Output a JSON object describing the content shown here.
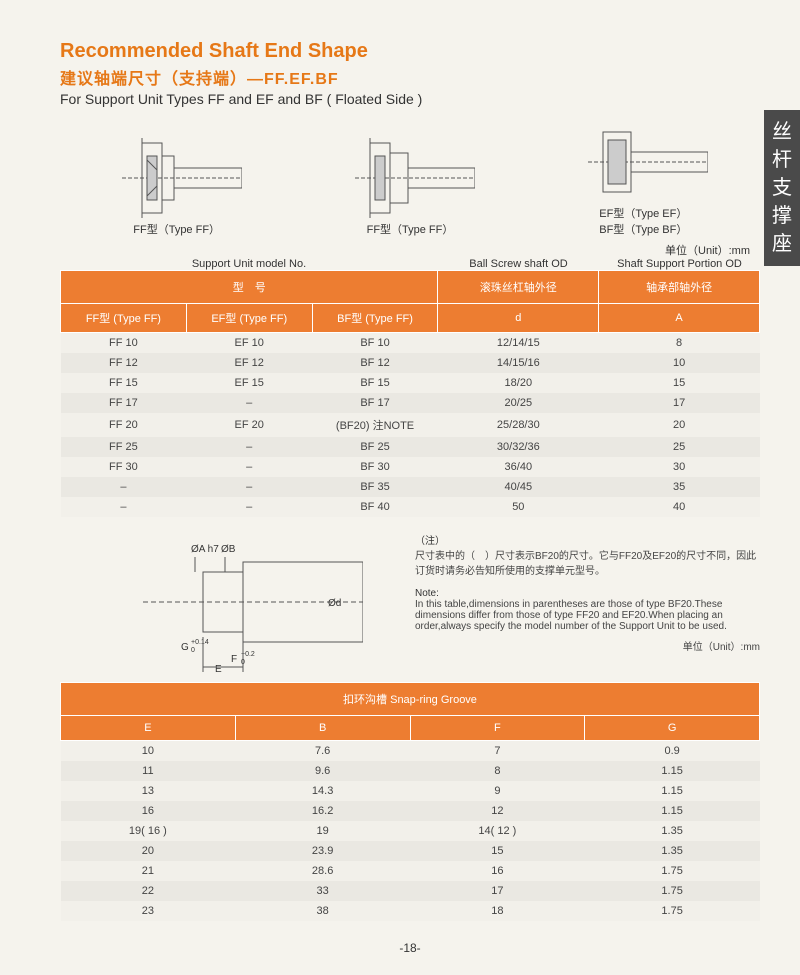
{
  "header": {
    "title_en": "Recommended Shaft End Shape",
    "title_cn": "建议轴端尺寸（支持端）—FF.EF.BF",
    "subtitle": "For Support Unit Types FF and EF and BF ( Floated Side )"
  },
  "diagrams": {
    "d1_label": "FF型（Type FF）",
    "d2_label": "FF型（Type FF）",
    "d3_label_top": "EF型（Type EF）",
    "d3_label_bot": "BF型（Type BF）",
    "unit": "单位（Unit）:mm"
  },
  "table1": {
    "over_labels": {
      "support": "Support Unit model No.",
      "ball": "Ball Screw shaft OD",
      "shaft": "Shaft Support Portion OD"
    },
    "group_headers": {
      "model": "型　号",
      "ball_cn": "滚珠丝杠轴外径",
      "shaft_cn": "轴承部轴外径"
    },
    "cols": {
      "ff": "FF型 (Type FF)",
      "ef": "EF型 (Type FF)",
      "bf": "BF型 (Type FF)",
      "d": "d",
      "a": "A"
    },
    "rows": [
      {
        "ff": "FF 10",
        "ef": "EF 10",
        "bf": "BF 10",
        "d": "12/14/15",
        "a": "8"
      },
      {
        "ff": "FF 12",
        "ef": "EF 12",
        "bf": "BF 12",
        "d": "14/15/16",
        "a": "10"
      },
      {
        "ff": "FF 15",
        "ef": "EF 15",
        "bf": "BF 15",
        "d": "18/20",
        "a": "15"
      },
      {
        "ff": "FF 17",
        "ef": "–",
        "bf": "BF 17",
        "d": "20/25",
        "a": "17"
      },
      {
        "ff": "FF 20",
        "ef": "EF 20",
        "bf": "(BF20) 注NOTE",
        "d": "25/28/30",
        "a": "20"
      },
      {
        "ff": "FF 25",
        "ef": "–",
        "bf": "BF 25",
        "d": "30/32/36",
        "a": "25"
      },
      {
        "ff": "FF 30",
        "ef": "–",
        "bf": "BF 30",
        "d": "36/40",
        "a": "30"
      },
      {
        "ff": "–",
        "ef": "–",
        "bf": "BF 35",
        "d": "40/45",
        "a": "35"
      },
      {
        "ff": "–",
        "ef": "–",
        "bf": "BF 40",
        "d": "50",
        "a": "40"
      }
    ]
  },
  "mid_diagram": {
    "labels": {
      "phi_a": "ØA h7",
      "phi_b": "ØB",
      "phi_d": "Ød",
      "g": "G",
      "g_tol": "+0.14\n  0",
      "f": "F",
      "f_tol": "+0.2\n  0",
      "e": "E"
    }
  },
  "note": {
    "cn_title": "（注）",
    "cn_body": "尺寸表中的（　）尺寸表示BF20的尺寸。它与FF20及EF20的尺寸不同，因此订货时请务必告知所使用的支撑单元型号。",
    "en_title": "Note:",
    "en_body": "In this table,dimensions in parentheses are those of type BF20.These dimensions differ from those of type FF20 and EF20.When placing an order,always specify the model number of the Support Unit to be used.",
    "unit": "单位（Unit）:mm"
  },
  "table2": {
    "group_header": "扣环沟槽  Snap-ring Groove",
    "cols": {
      "e": "E",
      "b": "B",
      "f": "F",
      "g": "G"
    },
    "rows": [
      {
        "e": "10",
        "b": "7.6",
        "f": "7",
        "g": "0.9"
      },
      {
        "e": "11",
        "b": "9.6",
        "f": "8",
        "g": "1.15"
      },
      {
        "e": "13",
        "b": "14.3",
        "f": "9",
        "g": "1.15"
      },
      {
        "e": "16",
        "b": "16.2",
        "f": "12",
        "g": "1.15"
      },
      {
        "e": "19( 16 )",
        "b": "19",
        "f": "14( 12 )",
        "g": "1.35"
      },
      {
        "e": "20",
        "b": "23.9",
        "f": "15",
        "g": "1.35"
      },
      {
        "e": "21",
        "b": "28.6",
        "f": "16",
        "g": "1.75"
      },
      {
        "e": "22",
        "b": "33",
        "f": "17",
        "g": "1.75"
      },
      {
        "e": "23",
        "b": "38",
        "f": "18",
        "g": "1.75"
      }
    ]
  },
  "side_tab": "丝杆支撑座",
  "page_num": "-18-",
  "colors": {
    "accent": "#ed7d31",
    "title": "#e67817",
    "sidebar": "#4a4a4a",
    "bg": "#f5f3ed"
  }
}
